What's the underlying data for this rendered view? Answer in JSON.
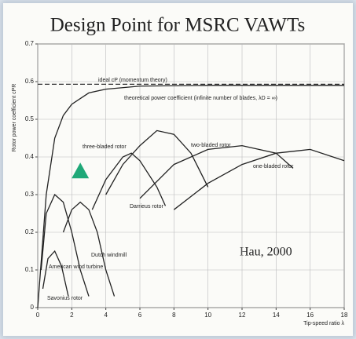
{
  "chart_data": {
    "type": "line",
    "title": "Design Point for MSRC VAWTs",
    "x_label": "Tip-speed ratio λ",
    "y_label": "Rotor power coefficient cPR",
    "annotation": "Hau, 2000",
    "xlim": [
      0,
      18
    ],
    "xticks": [
      0,
      2,
      4,
      6,
      8,
      10,
      12,
      14,
      16,
      18
    ],
    "ylim": [
      0,
      0.7
    ],
    "yticks": [
      0,
      0.1,
      0.2,
      0.3,
      0.4,
      0.5,
      0.6,
      0.7
    ],
    "series": [
      {
        "name": "ideal cP (momentum theory)",
        "color": "#333333",
        "dash": true,
        "x": [
          0,
          18
        ],
        "values": [
          0.593,
          0.593
        ]
      },
      {
        "name": "theoretical power coefficient (infinite number of blades, λD = ∞)",
        "color": "#222222",
        "x": [
          0,
          0.5,
          1,
          1.5,
          2,
          3,
          4,
          6,
          10,
          18
        ],
        "values": [
          0,
          0.3,
          0.45,
          0.51,
          0.54,
          0.57,
          0.58,
          0.588,
          0.59,
          0.59
        ]
      },
      {
        "name": "three-bladed rotor",
        "color": "#222222",
        "x": [
          4,
          5,
          6,
          7,
          8,
          9,
          10
        ],
        "values": [
          0.3,
          0.38,
          0.43,
          0.47,
          0.46,
          0.41,
          0.32
        ]
      },
      {
        "name": "two-bladed rotor",
        "color": "#222222",
        "x": [
          6,
          8,
          10,
          12,
          14,
          15
        ],
        "values": [
          0.29,
          0.38,
          0.42,
          0.43,
          0.41,
          0.37
        ]
      },
      {
        "name": "one-bladed rotor",
        "color": "#222222",
        "x": [
          8,
          10,
          12,
          14,
          16,
          18
        ],
        "values": [
          0.26,
          0.33,
          0.38,
          0.41,
          0.42,
          0.39
        ]
      },
      {
        "name": "Darrieus rotor",
        "color": "#222222",
        "x": [
          3.2,
          4,
          5,
          5.5,
          6,
          7,
          7.5
        ],
        "values": [
          0.26,
          0.34,
          0.4,
          0.41,
          0.39,
          0.32,
          0.27
        ]
      },
      {
        "name": "Dutch windmill",
        "color": "#222222",
        "x": [
          1.5,
          2,
          2.5,
          3,
          3.5,
          4,
          4.5
        ],
        "values": [
          0.2,
          0.26,
          0.28,
          0.26,
          0.2,
          0.1,
          0.03
        ]
      },
      {
        "name": "American wind turbine",
        "color": "#222222",
        "x": [
          0.2,
          0.5,
          1,
          1.5,
          2,
          2.5,
          3
        ],
        "values": [
          0.1,
          0.25,
          0.3,
          0.28,
          0.2,
          0.1,
          0.03
        ]
      },
      {
        "name": "Savonius rotor",
        "color": "#222222",
        "x": [
          0.3,
          0.6,
          1,
          1.4,
          1.8
        ],
        "values": [
          0.05,
          0.13,
          0.15,
          0.11,
          0.03
        ]
      }
    ],
    "design_point": {
      "x": 2.5,
      "y": 0.36,
      "color": "#1fa878"
    }
  }
}
